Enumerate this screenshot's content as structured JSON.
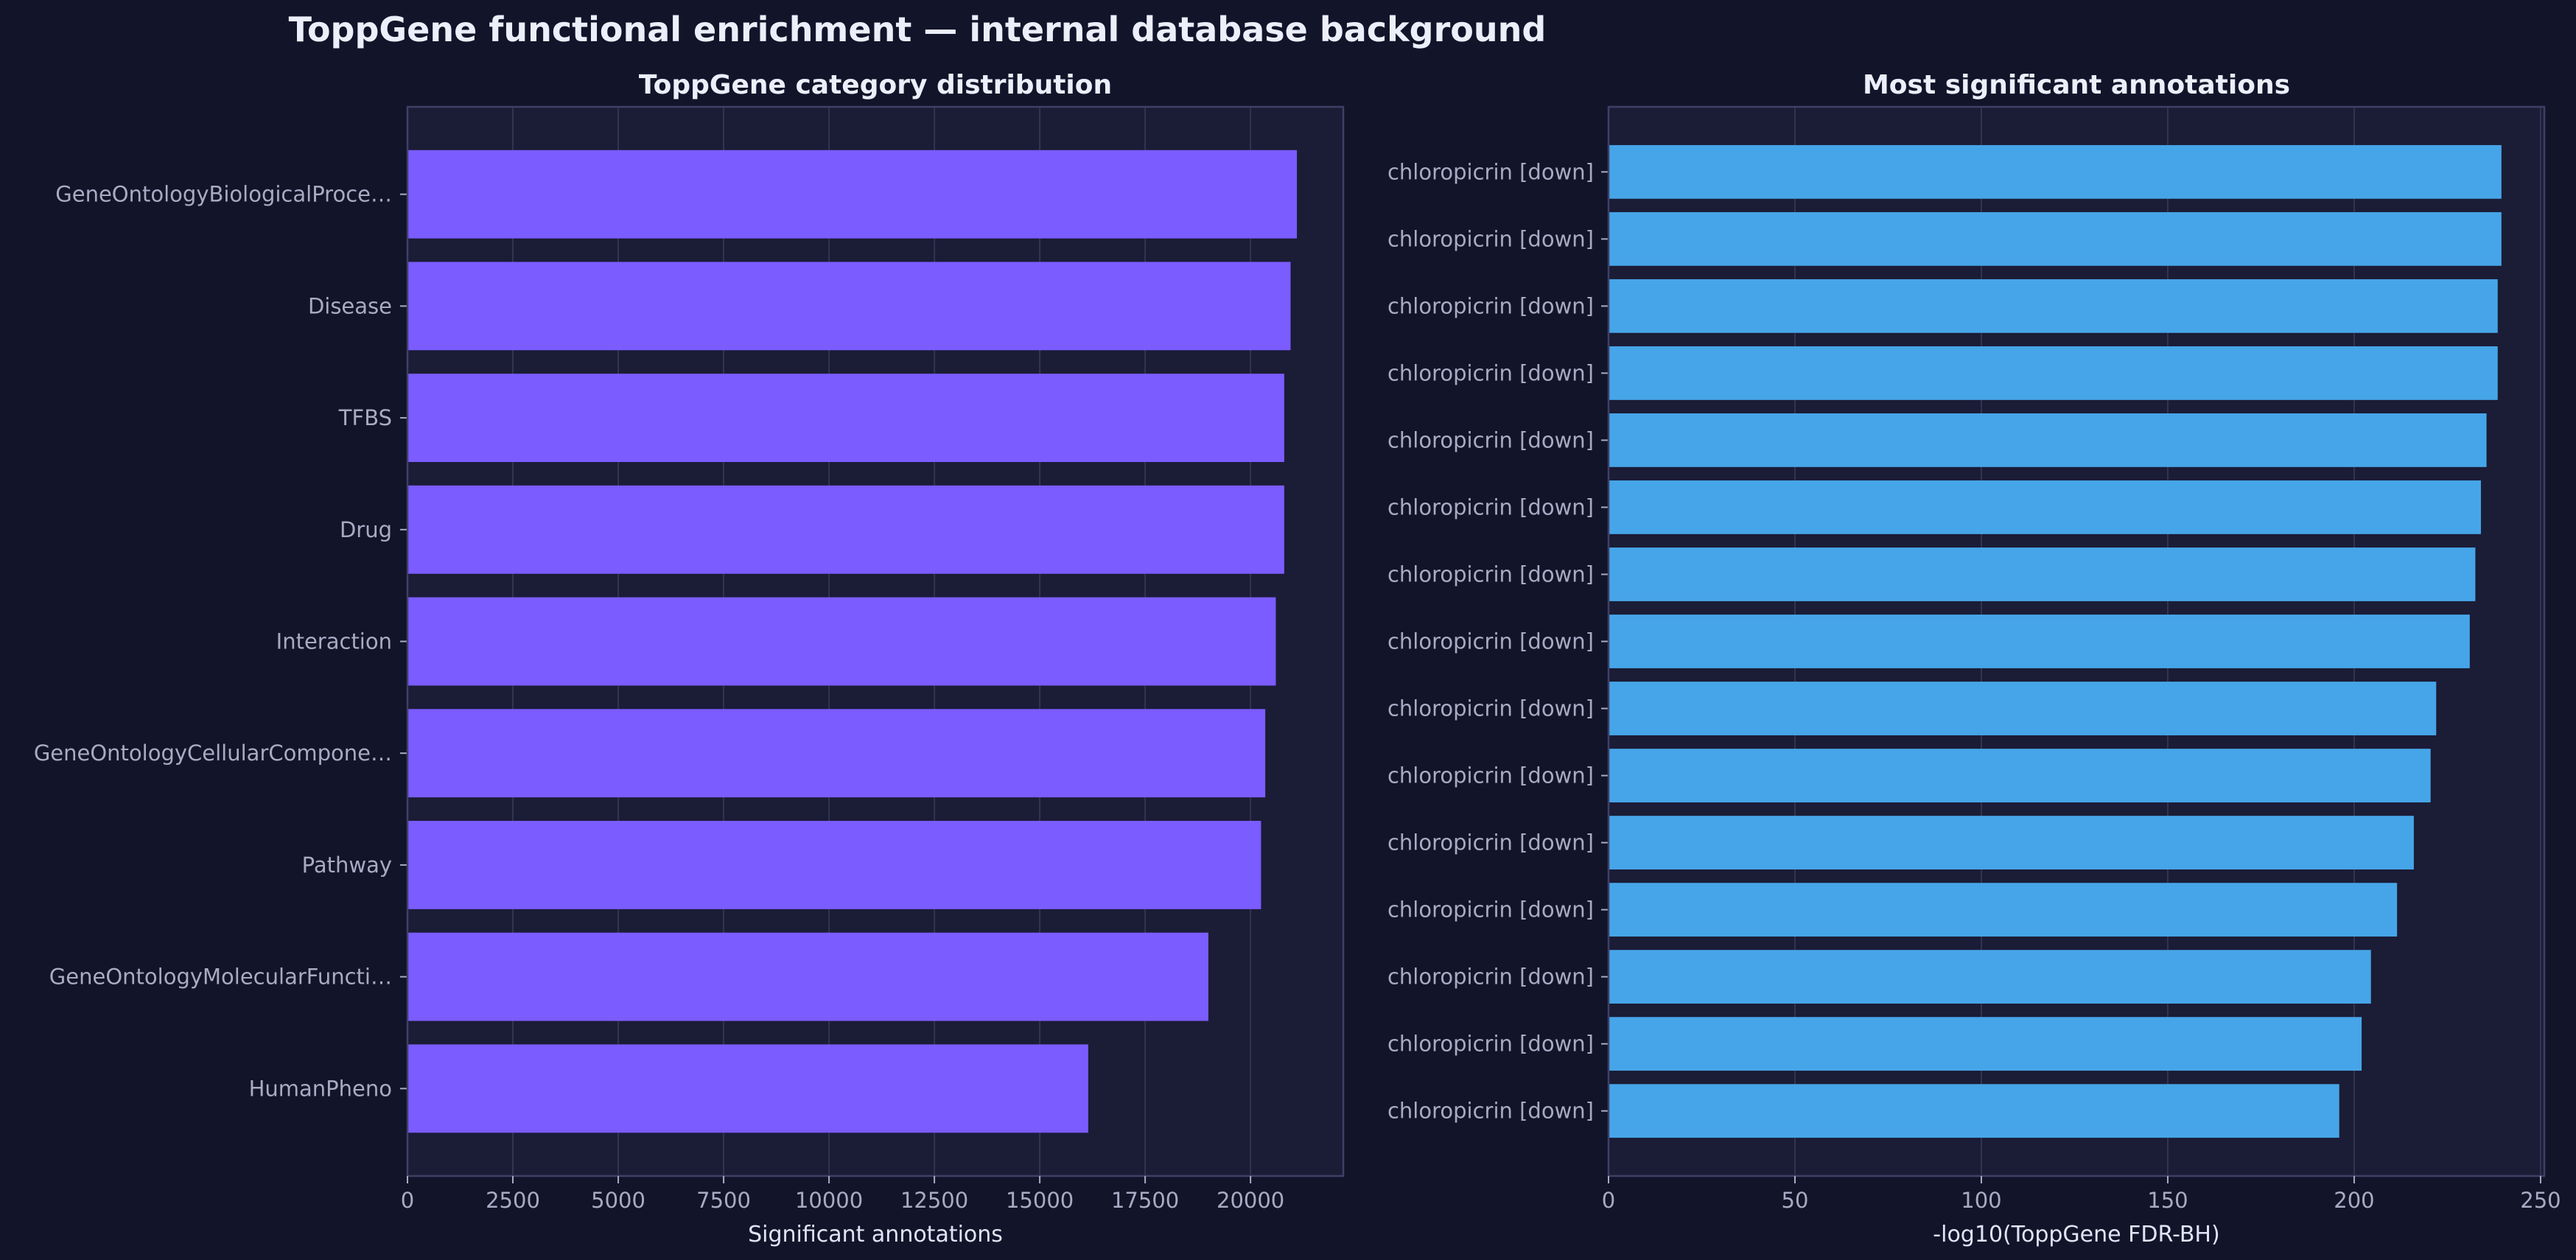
{
  "figure": {
    "suptitle": "ToppGene functional enrichment — internal database background"
  },
  "colors": {
    "figure_background": "#12142a",
    "axes_background": "#1b1c36",
    "grid": "#3a3c5c",
    "spine": "#3e4066",
    "tick_text": "#a9abc4",
    "label_text": "#e2e4f4",
    "title_text": "#eceefa",
    "left_bar": "#7b5cff",
    "right_bar": "#46a5e8"
  },
  "chart_data": [
    {
      "type": "bar",
      "orientation": "horizontal",
      "title": "ToppGene category distribution",
      "xlabel": "Significant annotations",
      "ylabel": "",
      "xlim": [
        0,
        22200
      ],
      "xticks": [
        0,
        2500,
        5000,
        7500,
        10000,
        12500,
        15000,
        17500,
        20000
      ],
      "grid": "x",
      "categories": [
        "GeneOntologyBiologicalProce…",
        "Disease",
        "TFBS",
        "Drug",
        "Interaction",
        "GeneOntologyCellularCompone…",
        "Pathway",
        "GeneOntologyMolecularFuncti…",
        "HumanPheno"
      ],
      "values": [
        21100,
        20950,
        20800,
        20800,
        20600,
        20350,
        20250,
        19000,
        16150
      ]
    },
    {
      "type": "bar",
      "orientation": "horizontal",
      "title": "Most significant annotations",
      "xlabel": "-log10(ToppGene FDR-BH)",
      "ylabel": "",
      "xlim": [
        0,
        251
      ],
      "xticks": [
        0,
        50,
        100,
        150,
        200,
        250
      ],
      "grid": "x",
      "categories": [
        "chloropicrin  [down]",
        "chloropicrin  [down]",
        "chloropicrin  [down]",
        "chloropicrin  [down]",
        "chloropicrin  [down]",
        "chloropicrin  [down]",
        "chloropicrin  [down]",
        "chloropicrin  [down]",
        "chloropicrin  [down]",
        "chloropicrin  [down]",
        "chloropicrin  [down]",
        "chloropicrin  [down]",
        "chloropicrin  [down]",
        "chloropicrin  [down]",
        "chloropicrin  [down]"
      ],
      "values": [
        239.5,
        239.5,
        238.5,
        238.5,
        235.5,
        234,
        232.5,
        231,
        222,
        220.5,
        216,
        211.5,
        204.5,
        202,
        196
      ]
    }
  ]
}
